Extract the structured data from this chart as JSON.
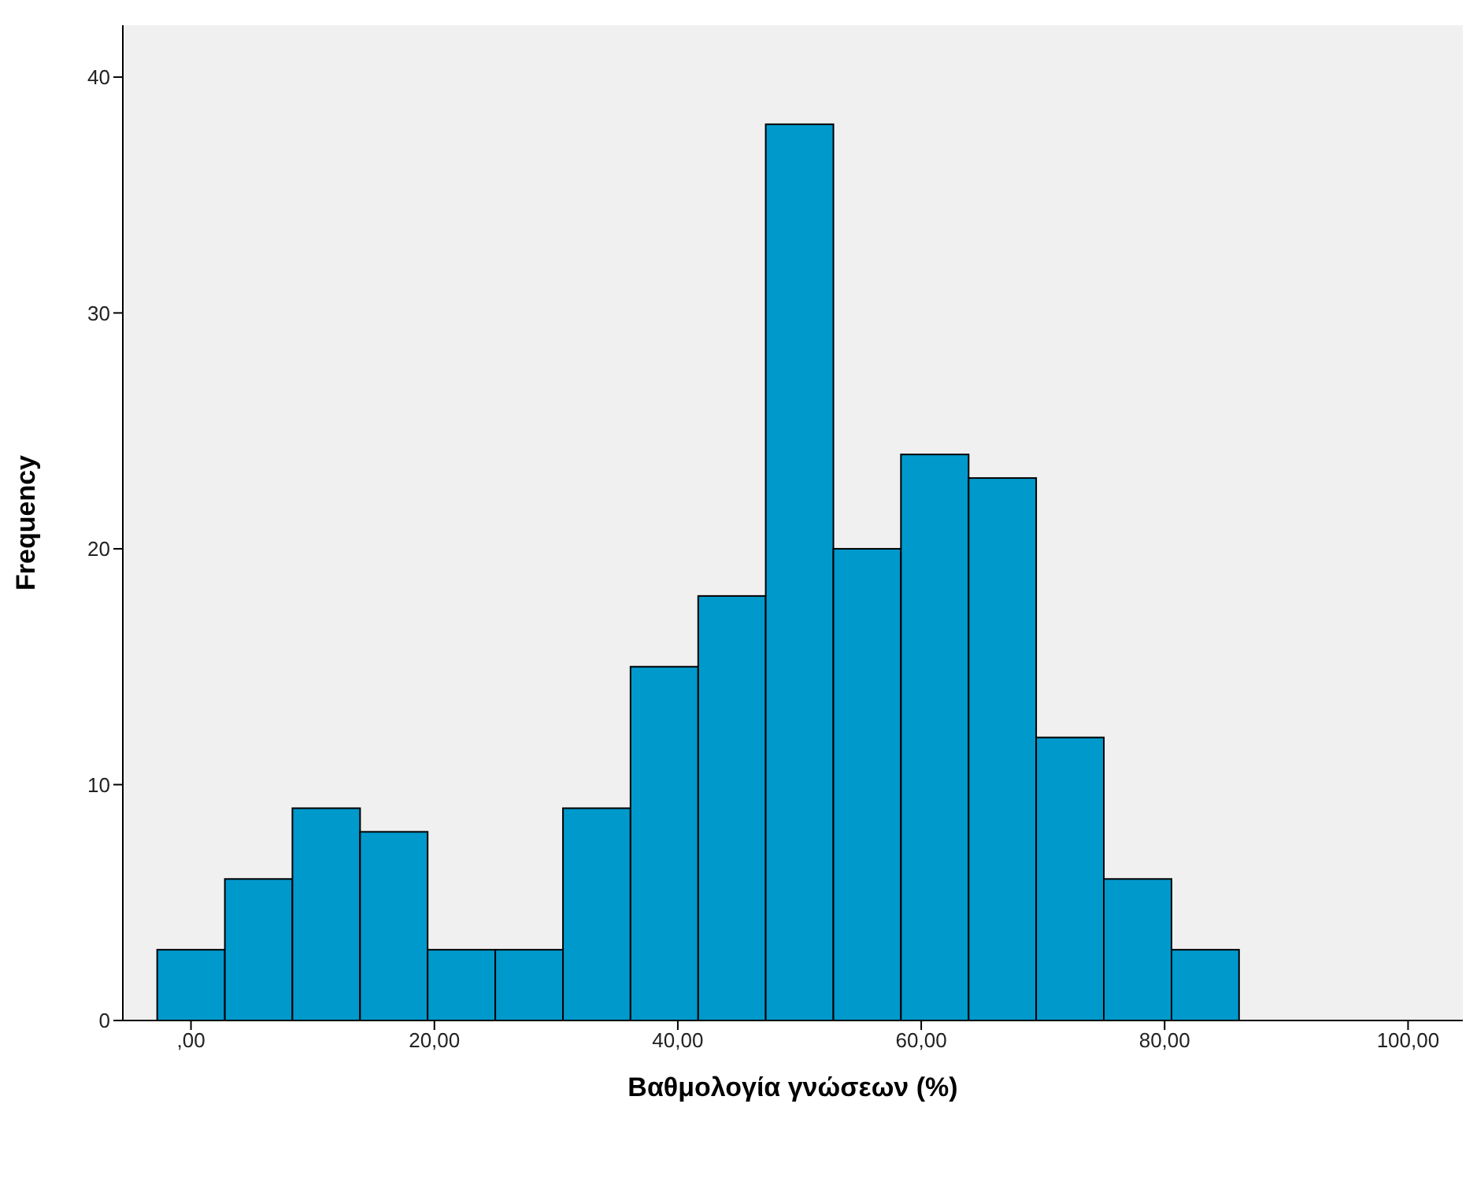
{
  "chart_data": {
    "type": "histogram",
    "xlabel": "Βαθμολογία γνώσεων (%)",
    "ylabel": "Frequency",
    "bins": [
      -2.78,
      2.78,
      8.33,
      13.89,
      19.44,
      25,
      30.56,
      36.11,
      41.67,
      47.22,
      52.78,
      58.33,
      63.89,
      69.44,
      75,
      80.56,
      86.11
    ],
    "values": [
      3,
      6,
      9,
      8,
      3,
      3,
      9,
      15,
      18,
      38,
      20,
      24,
      23,
      12,
      6,
      3
    ],
    "color": "#0099cc",
    "xlim": [
      -5.6,
      104.5
    ],
    "xticks": [
      {
        "value": 0,
        "label": ",00"
      },
      {
        "value": 20,
        "label": "20,00"
      },
      {
        "value": 40,
        "label": "40,00"
      },
      {
        "value": 60,
        "label": "60,00"
      },
      {
        "value": 80,
        "label": "80,00"
      },
      {
        "value": 100,
        "label": "100,00"
      }
    ],
    "ylim": [
      0,
      42.2
    ],
    "yticks": [
      0,
      10,
      20,
      30,
      40
    ],
    "grid": false,
    "legend": false
  }
}
